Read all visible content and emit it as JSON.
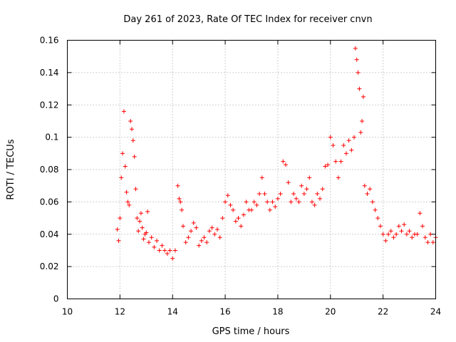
{
  "chart_data": {
    "type": "scatter",
    "title": "Day 261 of 2023, Rate Of TEC Index for receiver cnvn",
    "xlabel": "GPS time / hours",
    "ylabel": "ROTI / TECUs",
    "xlim": [
      10,
      24
    ],
    "ylim": [
      0,
      0.16
    ],
    "xticks": [
      "10",
      "12",
      "14",
      "16",
      "18",
      "20",
      "22",
      "24"
    ],
    "yticks": [
      "0",
      "0.02",
      "0.04",
      "0.06",
      "0.08",
      "0.1",
      "0.12",
      "0.14",
      "0.16"
    ],
    "grid": true,
    "marker": "+",
    "color": "#ff0000",
    "series": [
      {
        "x": [
          11.9,
          11.95,
          12.0,
          12.05,
          12.1,
          12.15,
          12.2,
          12.25,
          12.3,
          12.35,
          12.4,
          12.45,
          12.5,
          12.55,
          12.6,
          12.65,
          12.7,
          12.75,
          12.8,
          12.85,
          12.9,
          12.95,
          13.0,
          13.05,
          13.1,
          13.2,
          13.3,
          13.4,
          13.5,
          13.6,
          13.7,
          13.8,
          13.9,
          14.0,
          14.1,
          14.2,
          14.25,
          14.3,
          14.35,
          14.4,
          14.5,
          14.6,
          14.7,
          14.8,
          14.9,
          15.0,
          15.1,
          15.2,
          15.3,
          15.4,
          15.5,
          15.6,
          15.7,
          15.8,
          15.9,
          16.0,
          16.1,
          16.2,
          16.3,
          16.4,
          16.5,
          16.6,
          16.7,
          16.8,
          16.9,
          17.0,
          17.1,
          17.2,
          17.3,
          17.4,
          17.5,
          17.6,
          17.7,
          17.8,
          17.9,
          18.0,
          18.1,
          18.2,
          18.3,
          18.4,
          18.5,
          18.6,
          18.7,
          18.8,
          18.9,
          19.0,
          19.1,
          19.2,
          19.3,
          19.4,
          19.5,
          19.6,
          19.7,
          19.8,
          19.9,
          20.0,
          20.1,
          20.2,
          20.3,
          20.4,
          20.5,
          20.6,
          20.7,
          20.8,
          20.9,
          20.95,
          21.0,
          21.05,
          21.1,
          21.15,
          21.2,
          21.25,
          21.3,
          21.4,
          21.5,
          21.6,
          21.7,
          21.8,
          21.9,
          22.0,
          22.1,
          22.2,
          22.3,
          22.4,
          22.5,
          22.6,
          22.7,
          22.8,
          22.9,
          23.0,
          23.1,
          23.2,
          23.3,
          23.4,
          23.5,
          23.6,
          23.7,
          23.8,
          23.9,
          24.0
        ],
        "y": [
          0.043,
          0.036,
          0.05,
          0.075,
          0.09,
          0.116,
          0.082,
          0.066,
          0.06,
          0.058,
          0.11,
          0.105,
          0.098,
          0.088,
          0.068,
          0.05,
          0.042,
          0.048,
          0.053,
          0.044,
          0.037,
          0.04,
          0.041,
          0.054,
          0.035,
          0.038,
          0.032,
          0.036,
          0.03,
          0.033,
          0.03,
          0.028,
          0.03,
          0.025,
          0.03,
          0.07,
          0.062,
          0.06,
          0.055,
          0.045,
          0.035,
          0.038,
          0.042,
          0.047,
          0.044,
          0.033,
          0.036,
          0.038,
          0.035,
          0.042,
          0.044,
          0.04,
          0.043,
          0.038,
          0.05,
          0.06,
          0.064,
          0.058,
          0.055,
          0.048,
          0.05,
          0.045,
          0.052,
          0.06,
          0.055,
          0.055,
          0.06,
          0.058,
          0.065,
          0.075,
          0.065,
          0.06,
          0.055,
          0.06,
          0.057,
          0.062,
          0.065,
          0.085,
          0.083,
          0.072,
          0.06,
          0.065,
          0.062,
          0.06,
          0.07,
          0.065,
          0.068,
          0.075,
          0.06,
          0.058,
          0.065,
          0.062,
          0.068,
          0.082,
          0.083,
          0.1,
          0.095,
          0.085,
          0.075,
          0.085,
          0.095,
          0.09,
          0.098,
          0.092,
          0.1,
          0.155,
          0.148,
          0.14,
          0.13,
          0.103,
          0.11,
          0.125,
          0.07,
          0.065,
          0.068,
          0.06,
          0.055,
          0.05,
          0.045,
          0.04,
          0.036,
          0.04,
          0.042,
          0.038,
          0.04,
          0.045,
          0.042,
          0.046,
          0.04,
          0.042,
          0.038,
          0.04,
          0.04,
          0.053,
          0.045,
          0.038,
          0.035,
          0.04,
          0.035,
          0.038
        ]
      }
    ]
  }
}
